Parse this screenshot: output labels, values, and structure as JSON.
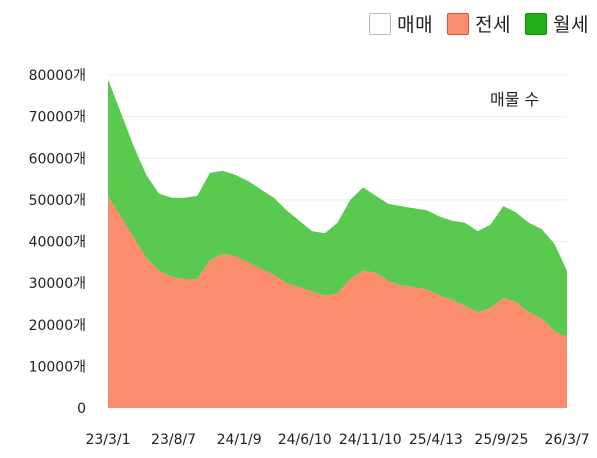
{
  "chart_data": {
    "type": "area",
    "stacked": true,
    "title": "",
    "annotation": "매물 수",
    "xlabel": "",
    "ylabel": "",
    "ylim": [
      0,
      80000
    ],
    "y_ticks": [
      "0",
      "10000개",
      "20000개",
      "30000개",
      "40000개",
      "50000개",
      "60000개",
      "70000개",
      "80000개"
    ],
    "y_tick_values": [
      0,
      10000,
      20000,
      30000,
      40000,
      50000,
      60000,
      70000,
      80000
    ],
    "x_ticks": [
      "23/3/1",
      "23/8/7",
      "24/1/9",
      "24/6/10",
      "24/11/10",
      "25/4/13",
      "25/9/25",
      "26/3/7"
    ],
    "grid": true,
    "legend": {
      "placement": "top-right",
      "items": [
        {
          "label": "매매",
          "color": "#ffffff",
          "border": "#bbbbbb"
        },
        {
          "label": "전세",
          "color": "#fb8c6e",
          "border": "#e2542f"
        },
        {
          "label": "월세",
          "color": "#5ac94f",
          "border": "#2c9a1f"
        }
      ]
    },
    "x": [
      "23/3/1",
      "23/4/1",
      "23/5/1",
      "23/6/1",
      "23/7/1",
      "23/8/7",
      "23/9/1",
      "23/10/1",
      "23/11/1",
      "23/12/1",
      "24/1/9",
      "24/2/1",
      "24/3/1",
      "24/4/1",
      "24/5/1",
      "24/6/10",
      "24/7/1",
      "24/8/1",
      "24/9/1",
      "24/10/1",
      "24/11/10",
      "24/12/1",
      "25/1/1",
      "25/2/1",
      "25/3/1",
      "25/4/13",
      "25/5/1",
      "25/6/1",
      "25/7/1",
      "25/8/1",
      "25/9/25",
      "25/10/15",
      "25/11/15",
      "25/12/15",
      "26/1/15",
      "26/2/15",
      "26/3/7"
    ],
    "series": [
      {
        "name": "매매",
        "values": [
          0,
          0,
          0,
          0,
          0,
          0,
          0,
          0,
          0,
          0,
          0,
          0,
          0,
          0,
          0,
          0,
          0,
          0,
          0,
          0,
          0,
          0,
          0,
          0,
          0,
          0,
          0,
          0,
          0,
          0,
          0,
          0,
          0,
          0,
          0,
          0,
          0
        ],
        "color": "#ffffff"
      },
      {
        "name": "전세",
        "values": [
          51000,
          46000,
          41000,
          36000,
          33000,
          31500,
          31000,
          31000,
          35500,
          37000,
          36500,
          35000,
          33500,
          32000,
          30000,
          29000,
          28000,
          27000,
          27500,
          31000,
          33000,
          32500,
          30500,
          29500,
          29000,
          28500,
          27000,
          26000,
          24500,
          23000,
          24000,
          26500,
          25500,
          23000,
          21500,
          18500,
          17000
        ],
        "color": "#fb8c6e"
      },
      {
        "name": "월세",
        "values": [
          28000,
          25000,
          22000,
          20000,
          18500,
          19000,
          19500,
          20000,
          21000,
          20000,
          19500,
          19500,
          19000,
          18500,
          17500,
          16000,
          14500,
          15000,
          17000,
          19000,
          20000,
          18500,
          18500,
          19000,
          19000,
          19000,
          19000,
          19000,
          20000,
          19500,
          20000,
          22000,
          21500,
          21500,
          21500,
          21000,
          16000
        ],
        "color": "#5ac94f"
      }
    ]
  }
}
